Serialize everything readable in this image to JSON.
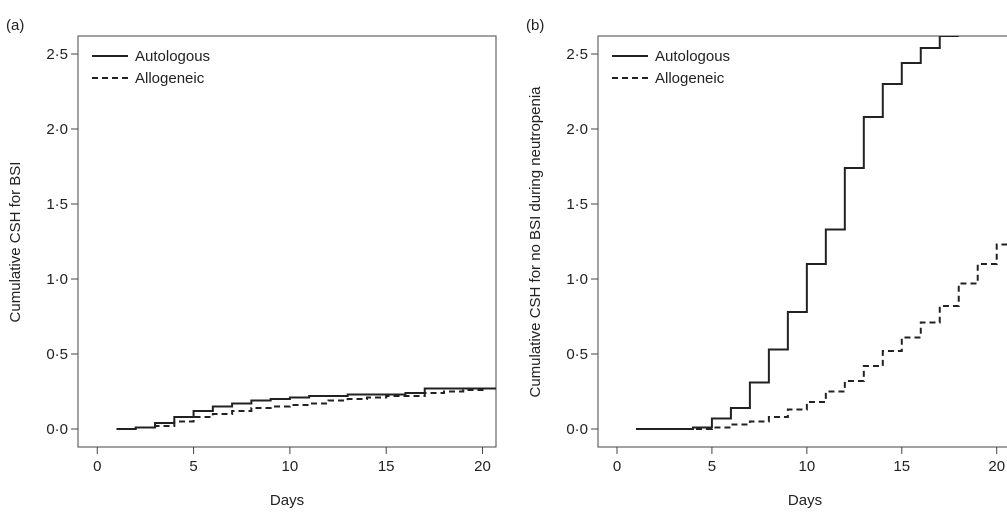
{
  "chart_data": [
    {
      "panel_label": "(a)",
      "type": "line",
      "xlabel": "Days",
      "ylabel": "Cumulative CSH for BSI",
      "xlim": [
        -1,
        20.7
      ],
      "ylim": [
        -0.12,
        2.62
      ],
      "xticks": [
        "0",
        "5",
        "10",
        "15",
        "20"
      ],
      "xtick_values": [
        0,
        5,
        10,
        15,
        20
      ],
      "yticks": [
        "0·0",
        "0·5",
        "1·0",
        "1·5",
        "2·0",
        "2·5"
      ],
      "ytick_values": [
        0,
        0.5,
        1.0,
        1.5,
        2.0,
        2.5
      ],
      "legend_position": "top-left",
      "series": [
        {
          "name": "Autologous",
          "style": "solid",
          "x": [
            1,
            2,
            3,
            4,
            5,
            6,
            7,
            8,
            9,
            10,
            11,
            12,
            13,
            14,
            15,
            16,
            17,
            18,
            19,
            20,
            20.7
          ],
          "y": [
            0.0,
            0.01,
            0.04,
            0.08,
            0.12,
            0.15,
            0.17,
            0.19,
            0.2,
            0.21,
            0.22,
            0.22,
            0.23,
            0.23,
            0.23,
            0.24,
            0.27,
            0.27,
            0.27,
            0.27,
            0.27
          ]
        },
        {
          "name": "Allogeneic",
          "style": "dashed",
          "x": [
            1,
            2,
            3,
            4,
            5,
            6,
            7,
            8,
            9,
            10,
            11,
            12,
            13,
            14,
            15,
            16,
            17,
            18,
            19,
            20,
            20.7
          ],
          "y": [
            0.0,
            0.01,
            0.02,
            0.05,
            0.08,
            0.1,
            0.12,
            0.14,
            0.15,
            0.16,
            0.17,
            0.19,
            0.2,
            0.21,
            0.22,
            0.22,
            0.24,
            0.25,
            0.26,
            0.27,
            0.27
          ]
        }
      ]
    },
    {
      "panel_label": "(b)",
      "type": "line",
      "xlabel": "Days",
      "ylabel": "Cumulative CSH for no BSI during neutropenia",
      "xlim": [
        -1,
        20.7
      ],
      "ylim": [
        -0.12,
        2.62
      ],
      "xticks": [
        "0",
        "5",
        "10",
        "15",
        "20"
      ],
      "xtick_values": [
        0,
        5,
        10,
        15,
        20
      ],
      "yticks": [
        "0·0",
        "0·5",
        "1·0",
        "1·5",
        "2·0",
        "2·5"
      ],
      "ytick_values": [
        0,
        0.5,
        1.0,
        1.5,
        2.0,
        2.5
      ],
      "legend_position": "top-left",
      "series": [
        {
          "name": "Autologous",
          "style": "solid",
          "x": [
            1,
            2,
            3,
            4,
            5,
            6,
            7,
            8,
            9,
            10,
            11,
            12,
            13,
            14,
            15,
            16,
            17,
            18
          ],
          "y": [
            0.0,
            0.0,
            0.0,
            0.01,
            0.07,
            0.14,
            0.31,
            0.53,
            0.78,
            1.1,
            1.33,
            1.74,
            2.08,
            2.3,
            2.44,
            2.54,
            2.62,
            2.62
          ]
        },
        {
          "name": "Allogeneic",
          "style": "dashed",
          "x": [
            1,
            2,
            3,
            4,
            5,
            6,
            7,
            8,
            9,
            10,
            11,
            12,
            13,
            14,
            15,
            16,
            17,
            18,
            19,
            20,
            20.7
          ],
          "y": [
            0.0,
            0.0,
            0.0,
            0.0,
            0.01,
            0.03,
            0.05,
            0.08,
            0.13,
            0.18,
            0.25,
            0.32,
            0.42,
            0.52,
            0.61,
            0.71,
            0.82,
            0.97,
            1.1,
            1.23,
            1.28
          ]
        }
      ]
    }
  ]
}
